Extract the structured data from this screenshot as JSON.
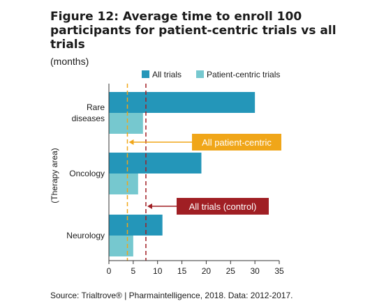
{
  "title": "Figure 12: Average time to enroll 100 participants for patient-centric trials vs all trials",
  "subtitle": "(months)",
  "source": "Source: Trialtrove® | Pharmaintelligence, 2018. Data: 2012-2017.",
  "colors": {
    "all_trials": "#2496b9",
    "patient_centric": "#76c8cf",
    "patient_centric_line": "#f0a619",
    "all_trials_line": "#a01f24",
    "axis": "#333333"
  },
  "chart_data": {
    "type": "bar",
    "orientation": "horizontal",
    "categories": [
      "Rare\ndiseases",
      "Oncology",
      "Neurology"
    ],
    "series": [
      {
        "name": "All trials",
        "values": [
          30,
          19,
          11
        ]
      },
      {
        "name": "Patient-centric trials",
        "values": [
          7,
          6,
          5
        ]
      }
    ],
    "reference_lines": [
      {
        "label": "All patient-centric",
        "value": 3.8
      },
      {
        "label": "All trials (control)",
        "value": 7.6
      }
    ],
    "ylabel": "(Therapy area)",
    "xlabel": "",
    "xlim": [
      0,
      35
    ],
    "xticks": [
      0,
      5,
      10,
      15,
      20,
      25,
      30,
      35
    ],
    "legend_position": "top",
    "grid": false
  }
}
